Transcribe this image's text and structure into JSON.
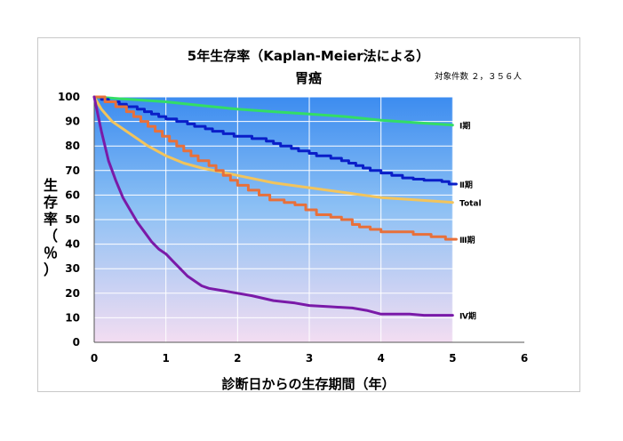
{
  "chart_data": {
    "type": "line",
    "title": "5年生存率（Kaplan-Meier法による）",
    "subtitle": "胃癌",
    "case_count_label": "対象件数 ２，３５６人",
    "xlabel": "診断日からの生存期間（年）",
    "ylabel": "生存率（％）",
    "xlim": [
      0,
      6
    ],
    "ylim": [
      0,
      100
    ],
    "xticks": [
      0,
      1,
      2,
      3,
      4,
      5,
      6
    ],
    "yticks": [
      0,
      10,
      20,
      30,
      40,
      50,
      60,
      70,
      80,
      90,
      100
    ],
    "grid": true,
    "series": [
      {
        "name": "Ⅰ期",
        "color": "#33dd66",
        "step": false,
        "points": [
          [
            0,
            100
          ],
          [
            0.5,
            99
          ],
          [
            1,
            98
          ],
          [
            1.5,
            96.5
          ],
          [
            2,
            95
          ],
          [
            2.5,
            94
          ],
          [
            3,
            93
          ],
          [
            3.5,
            92
          ],
          [
            4,
            90.5
          ],
          [
            4.5,
            89.5
          ],
          [
            5,
            88.5
          ]
        ]
      },
      {
        "name": "Ⅱ期",
        "color": "#0a1ec8",
        "step": true,
        "points": [
          [
            0,
            100
          ],
          [
            0.1,
            99
          ],
          [
            0.2,
            98
          ],
          [
            0.35,
            97
          ],
          [
            0.45,
            96
          ],
          [
            0.6,
            95
          ],
          [
            0.7,
            94
          ],
          [
            0.8,
            93
          ],
          [
            0.9,
            92
          ],
          [
            1.0,
            91
          ],
          [
            1.15,
            90
          ],
          [
            1.3,
            89
          ],
          [
            1.4,
            88
          ],
          [
            1.55,
            87
          ],
          [
            1.65,
            86
          ],
          [
            1.8,
            85
          ],
          [
            1.95,
            84
          ],
          [
            2.2,
            83
          ],
          [
            2.4,
            82
          ],
          [
            2.5,
            81
          ],
          [
            2.6,
            80
          ],
          [
            2.75,
            79
          ],
          [
            2.85,
            78
          ],
          [
            3.0,
            77
          ],
          [
            3.1,
            76
          ],
          [
            3.3,
            75
          ],
          [
            3.45,
            74
          ],
          [
            3.55,
            73
          ],
          [
            3.65,
            72
          ],
          [
            3.75,
            71
          ],
          [
            3.85,
            70
          ],
          [
            4.0,
            69
          ],
          [
            4.15,
            68
          ],
          [
            4.3,
            67
          ],
          [
            4.45,
            66.5
          ],
          [
            4.6,
            66
          ],
          [
            4.85,
            65.5
          ],
          [
            4.95,
            64.5
          ],
          [
            5.05,
            64.5
          ]
        ]
      },
      {
        "name": "Total",
        "color": "#f2c45c",
        "step": false,
        "points": [
          [
            0,
            100
          ],
          [
            0.1,
            95
          ],
          [
            0.25,
            90
          ],
          [
            0.5,
            85
          ],
          [
            0.75,
            80
          ],
          [
            1.0,
            76
          ],
          [
            1.25,
            73
          ],
          [
            1.5,
            71
          ],
          [
            2.0,
            68
          ],
          [
            2.5,
            65
          ],
          [
            3.0,
            63
          ],
          [
            3.5,
            61
          ],
          [
            4.0,
            59
          ],
          [
            4.5,
            58
          ],
          [
            5.0,
            57
          ]
        ]
      },
      {
        "name": "Ⅲ期",
        "color": "#e8703a",
        "step": true,
        "points": [
          [
            0,
            100
          ],
          [
            0.15,
            98
          ],
          [
            0.3,
            96
          ],
          [
            0.45,
            94
          ],
          [
            0.55,
            92
          ],
          [
            0.65,
            90
          ],
          [
            0.75,
            88
          ],
          [
            0.85,
            86
          ],
          [
            0.95,
            84
          ],
          [
            1.05,
            82
          ],
          [
            1.15,
            80
          ],
          [
            1.25,
            78
          ],
          [
            1.35,
            76
          ],
          [
            1.45,
            74
          ],
          [
            1.6,
            72
          ],
          [
            1.7,
            70
          ],
          [
            1.8,
            68
          ],
          [
            1.9,
            66
          ],
          [
            2.0,
            64
          ],
          [
            2.15,
            62
          ],
          [
            2.3,
            60
          ],
          [
            2.45,
            58
          ],
          [
            2.65,
            57
          ],
          [
            2.8,
            56
          ],
          [
            2.95,
            54
          ],
          [
            3.1,
            52
          ],
          [
            3.3,
            51
          ],
          [
            3.45,
            50
          ],
          [
            3.6,
            48
          ],
          [
            3.7,
            47
          ],
          [
            3.85,
            46
          ],
          [
            4.0,
            45
          ],
          [
            4.2,
            45
          ],
          [
            4.45,
            44
          ],
          [
            4.7,
            43
          ],
          [
            4.9,
            42
          ],
          [
            5.05,
            42
          ]
        ]
      },
      {
        "name": "Ⅳ期",
        "color": "#7a1aa8",
        "step": false,
        "points": [
          [
            0,
            100
          ],
          [
            0.05,
            93
          ],
          [
            0.1,
            86
          ],
          [
            0.15,
            80
          ],
          [
            0.2,
            74
          ],
          [
            0.3,
            66
          ],
          [
            0.4,
            59
          ],
          [
            0.5,
            54
          ],
          [
            0.6,
            49
          ],
          [
            0.7,
            45
          ],
          [
            0.8,
            41
          ],
          [
            0.9,
            38
          ],
          [
            1.0,
            36
          ],
          [
            1.1,
            33
          ],
          [
            1.2,
            30
          ],
          [
            1.3,
            27
          ],
          [
            1.4,
            25
          ],
          [
            1.5,
            23
          ],
          [
            1.6,
            22
          ],
          [
            1.8,
            21
          ],
          [
            2.0,
            20
          ],
          [
            2.2,
            19
          ],
          [
            2.5,
            17
          ],
          [
            2.8,
            16
          ],
          [
            3.0,
            15
          ],
          [
            3.3,
            14.5
          ],
          [
            3.6,
            14
          ],
          [
            3.8,
            13
          ],
          [
            4.0,
            11.5
          ],
          [
            4.4,
            11.5
          ],
          [
            4.6,
            11
          ],
          [
            5.0,
            11
          ]
        ]
      }
    ]
  }
}
